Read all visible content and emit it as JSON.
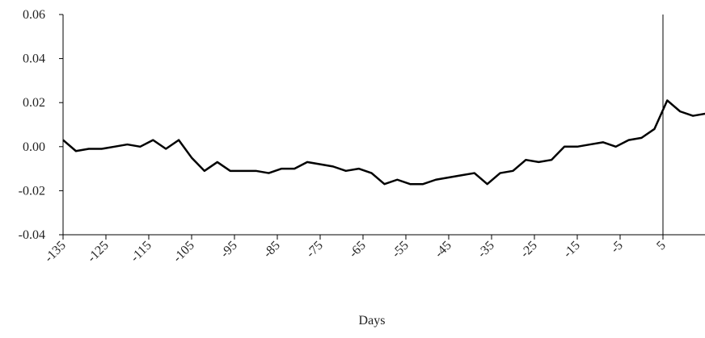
{
  "chart_data": {
    "type": "line",
    "x_label": "Days",
    "x": [
      -135,
      -132,
      -129,
      -126,
      -123,
      -120,
      -117,
      -114,
      -111,
      -108,
      -105,
      -102,
      -99,
      -96,
      -93,
      -90,
      -87,
      -84,
      -81,
      -78,
      -75,
      -72,
      -69,
      -66,
      -63,
      -60,
      -57,
      -54,
      -51,
      -48,
      -45,
      -42,
      -39,
      -36,
      -33,
      -30,
      -27,
      -24,
      -21,
      -18,
      -15,
      -12,
      -9,
      -6,
      -3,
      0,
      3,
      6,
      9,
      12,
      15
    ],
    "series": [
      {
        "color": "#000000",
        "values": [
          0.003,
          -0.002,
          -0.001,
          -0.001,
          0.0,
          0.001,
          0.0,
          0.003,
          -0.001,
          0.003,
          -0.005,
          -0.011,
          -0.007,
          -0.011,
          -0.011,
          -0.011,
          -0.012,
          -0.01,
          -0.01,
          -0.007,
          -0.008,
          -0.009,
          -0.011,
          -0.01,
          -0.012,
          -0.017,
          -0.015,
          -0.017,
          -0.017,
          -0.015,
          -0.014,
          -0.013,
          -0.012,
          -0.017,
          -0.012,
          -0.011,
          -0.006,
          -0.007,
          -0.006,
          0.0,
          0.0,
          0.001,
          0.002,
          0.0,
          0.003,
          0.004,
          0.008,
          0.021,
          0.016,
          0.014,
          0.015
        ]
      }
    ],
    "xlim": [
      -135,
      15
    ],
    "xticks": [
      -135,
      -125,
      -115,
      -105,
      -95,
      -85,
      -75,
      -65,
      -55,
      -45,
      -35,
      -25,
      -15,
      -5,
      5
    ],
    "ylim": [
      -0.04,
      0.06
    ],
    "yticks": [
      -0.04,
      -0.02,
      {
        "value": 0,
        "label": "0.00"
      },
      0.02,
      0.04,
      0.06
    ],
    "vline": 5
  }
}
